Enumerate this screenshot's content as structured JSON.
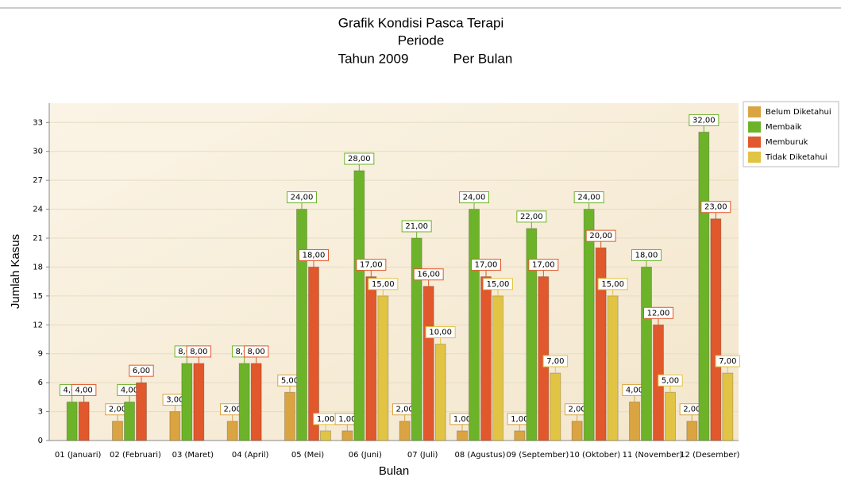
{
  "chart_data": {
    "type": "bar",
    "title": "Grafik Kondisi Pasca Terapi",
    "subtitle": "Periode",
    "period": [
      "Tahun 2009",
      "Per Bulan"
    ],
    "x_label": "Bulan",
    "y_label": "Jumlah Kasus",
    "categories": [
      "01 (Januari)",
      "02 (Februari)",
      "03 (Maret)",
      "04 (April)",
      "05 (Mei)",
      "06 (Juni)",
      "07 (Juli)",
      "08 (Agustus)",
      "09 (September)",
      "10 (Oktober)",
      "11 (November)",
      "12 (Desember)"
    ],
    "series": [
      {
        "name": "Belum Diketahui",
        "color": "#d9a441",
        "values": [
          null,
          2,
          3,
          2,
          5,
          1,
          2,
          1,
          1,
          2,
          4,
          2
        ],
        "value_labels": [
          null,
          "2,00",
          "3,00",
          "2,00",
          "5,00",
          "1,00",
          "2,00",
          "1,00",
          "1,00",
          "2,00",
          "4,00",
          "2,00"
        ]
      },
      {
        "name": "Membaik",
        "color": "#6db32a",
        "values": [
          4,
          4,
          8,
          8,
          24,
          28,
          21,
          24,
          22,
          24,
          18,
          32
        ],
        "value_labels": [
          "4,00",
          "4,00",
          "8,00",
          "8,00",
          "24,00",
          "28,00",
          "21,00",
          "24,00",
          "22,00",
          "24,00",
          "18,00",
          "32,00"
        ]
      },
      {
        "name": "Memburuk",
        "color": "#e0582b",
        "values": [
          4,
          6,
          8,
          8,
          18,
          17,
          16,
          17,
          17,
          20,
          12,
          23
        ],
        "value_labels": [
          "4,00",
          "6,00",
          "8,00",
          "8,00",
          "18,00",
          "17,00",
          "16,00",
          "17,00",
          "17,00",
          "20,00",
          "12,00",
          "23,00"
        ]
      },
      {
        "name": "Tidak Diketahui",
        "color": "#e2c444",
        "values": [
          null,
          null,
          null,
          null,
          1,
          15,
          10,
          15,
          7,
          15,
          5,
          7
        ],
        "value_labels": [
          null,
          null,
          null,
          null,
          "1,00",
          "15,00",
          "10,00",
          "15,00",
          "7,00",
          "15,00",
          "5,00",
          "7,00"
        ]
      }
    ],
    "ylim": [
      0,
      35
    ],
    "yticks": [
      0,
      3,
      6,
      9,
      12,
      15,
      18,
      21,
      24,
      27,
      30,
      33
    ],
    "grid": true,
    "legend": "top-right"
  }
}
